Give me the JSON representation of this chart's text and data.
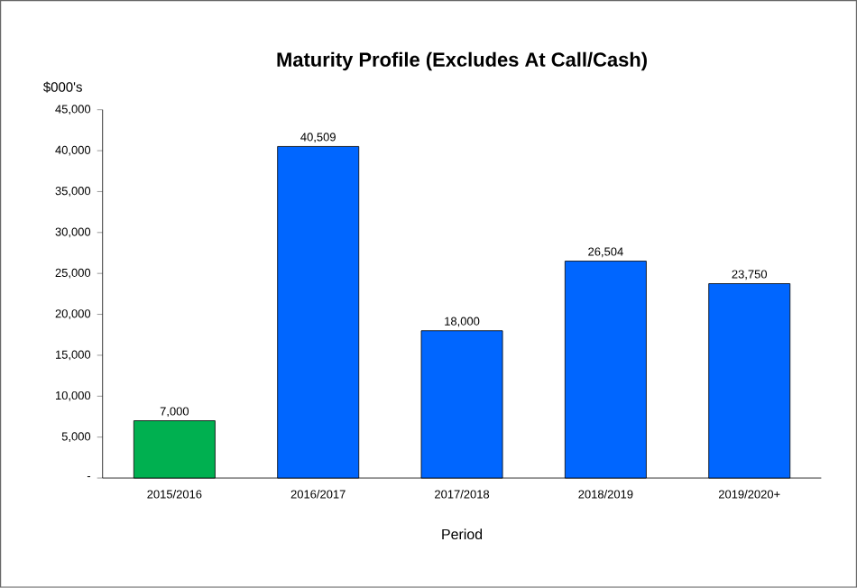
{
  "chart_data": {
    "type": "bar",
    "title": "Maturity Profile (Excludes At Call/Cash)",
    "ylabel": "$000's",
    "xlabel": "Period",
    "categories": [
      "2015/2016",
      "2016/2017",
      "2017/2018",
      "2018/2019",
      "2019/2020+"
    ],
    "values": [
      7000,
      40509,
      18000,
      26504,
      23750
    ],
    "colors": [
      "#00b050",
      "#0066ff",
      "#0066ff",
      "#0066ff",
      "#0066ff"
    ],
    "value_labels": [
      "7,000",
      "40,509",
      "18,000",
      "26,504",
      "23,750"
    ],
    "ylim": [
      0,
      45000
    ],
    "yticks": [
      {
        "value": 0,
        "label": "-"
      },
      {
        "value": 5000,
        "label": "5,000"
      },
      {
        "value": 10000,
        "label": "10,000"
      },
      {
        "value": 15000,
        "label": "15,000"
      },
      {
        "value": 20000,
        "label": "20,000"
      },
      {
        "value": 25000,
        "label": "25,000"
      },
      {
        "value": 30000,
        "label": "30,000"
      },
      {
        "value": 35000,
        "label": "35,000"
      },
      {
        "value": 40000,
        "label": "40,000"
      },
      {
        "value": 45000,
        "label": "45,000"
      }
    ]
  }
}
